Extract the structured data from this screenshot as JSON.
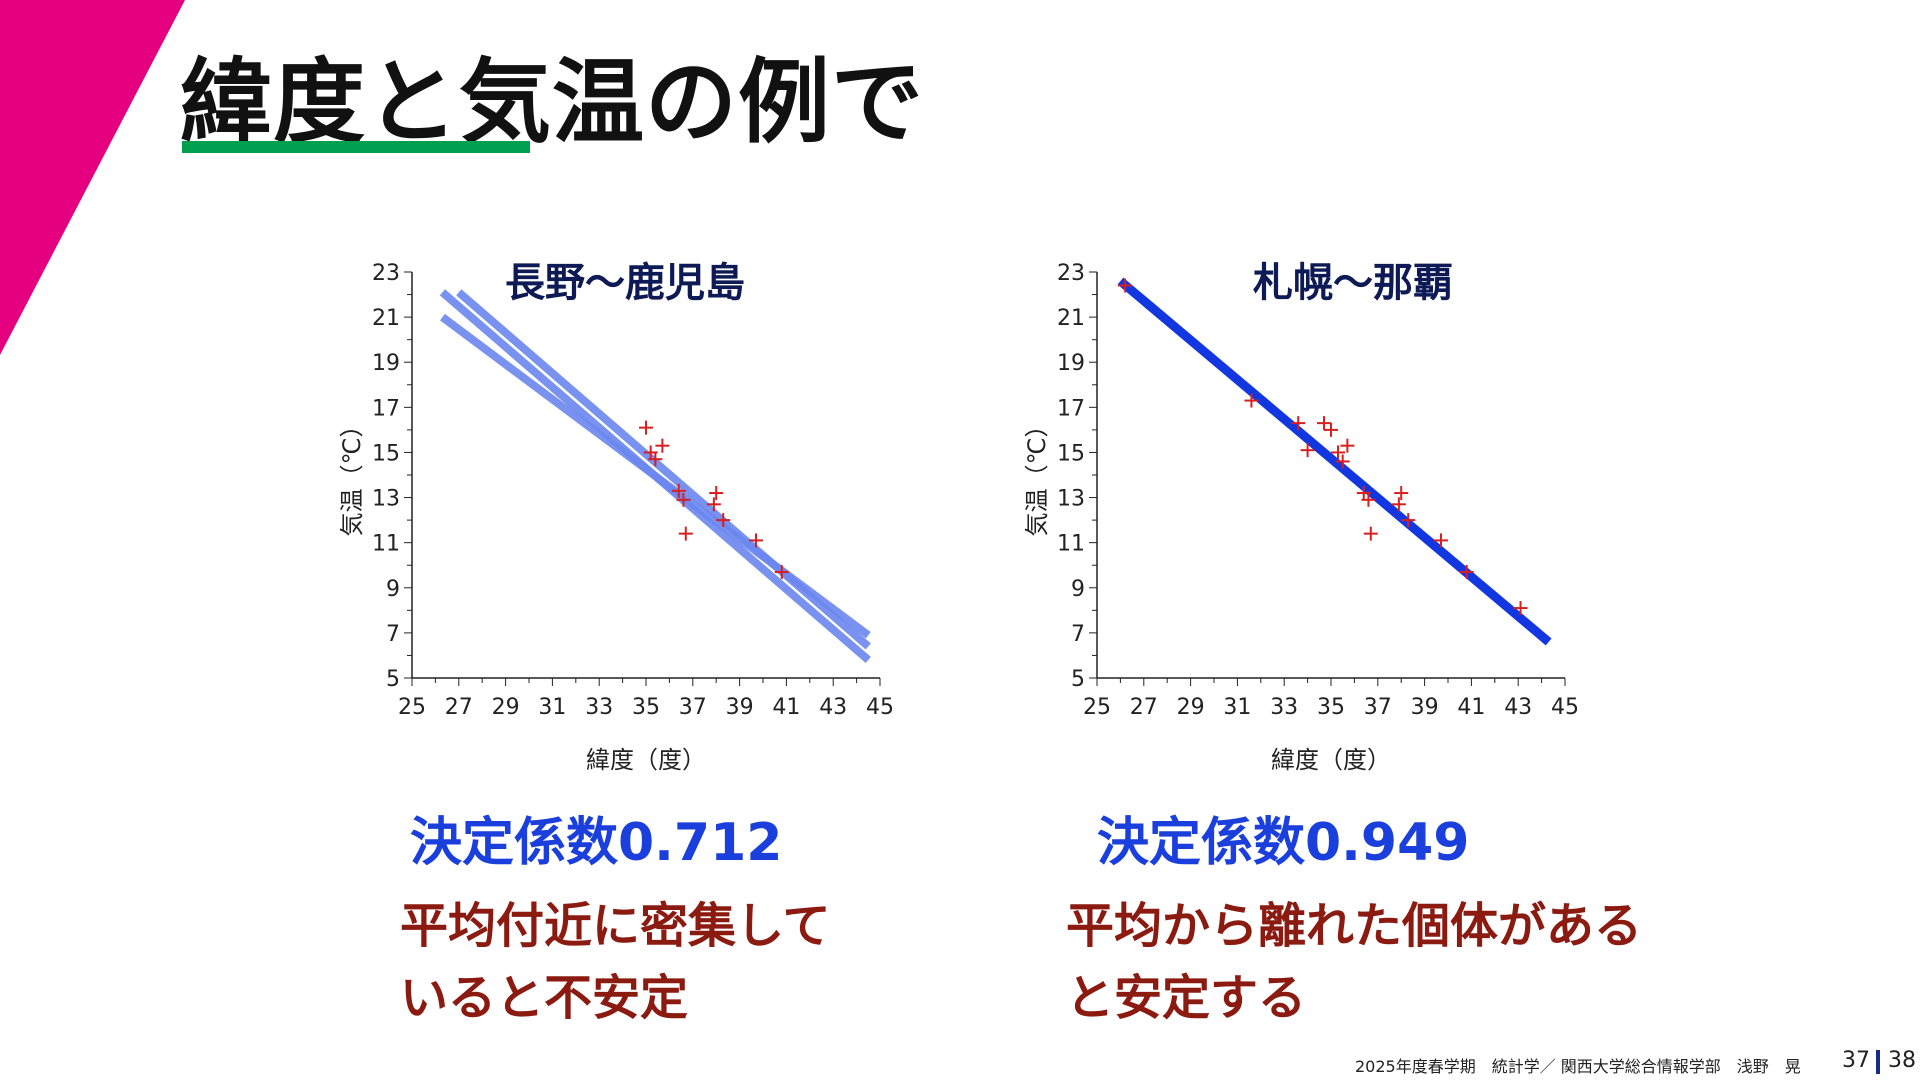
{
  "slide": {
    "title": "緯度と気温の例で",
    "footer": "2025年度春学期　統計学／ 関西大学総合情報学部　浅野　晃",
    "page_current": "37",
    "page_total": "38"
  },
  "colors": {
    "accent_triangle": "#e5007f",
    "title_underline": "#00a050",
    "chart_title": "#0d1a55",
    "stat_text": "#1a3fdc",
    "note_text": "#8b1a10",
    "point_marker": "#d81e1e",
    "left_lines": "#6a86ee",
    "right_line": "#1237e0"
  },
  "chart_data": [
    {
      "type": "scatter",
      "title": "長野～鹿児島",
      "xlabel": "緯度（度）",
      "ylabel": "気温（℃）",
      "xlim": [
        25,
        45
      ],
      "ylim": [
        5,
        23
      ],
      "xticks": [
        25,
        27,
        29,
        31,
        33,
        35,
        37,
        39,
        41,
        43,
        45
      ],
      "yticks": [
        5,
        7,
        9,
        11,
        13,
        15,
        17,
        19,
        21,
        23
      ],
      "grid": false,
      "points": [
        {
          "x": 35.0,
          "y": 16.1
        },
        {
          "x": 35.2,
          "y": 15.0
        },
        {
          "x": 35.4,
          "y": 14.7
        },
        {
          "x": 35.7,
          "y": 15.3
        },
        {
          "x": 36.4,
          "y": 13.3
        },
        {
          "x": 36.6,
          "y": 12.9
        },
        {
          "x": 36.7,
          "y": 11.4
        },
        {
          "x": 37.9,
          "y": 12.7
        },
        {
          "x": 38.0,
          "y": 13.2
        },
        {
          "x": 38.3,
          "y": 12.0
        },
        {
          "x": 39.7,
          "y": 11.1
        },
        {
          "x": 40.8,
          "y": 9.7
        }
      ],
      "lines": [
        {
          "x": [
            26.3,
            44.5
          ],
          "y": [
            22.1,
            5.8
          ]
        },
        {
          "x": [
            26.3,
            44.5
          ],
          "y": [
            21.0,
            6.9
          ]
        },
        {
          "x": [
            27.0,
            44.5
          ],
          "y": [
            22.1,
            6.4
          ]
        }
      ]
    },
    {
      "type": "scatter",
      "title": "札幌～那覇",
      "xlabel": "緯度（度）",
      "ylabel": "気温（℃）",
      "xlim": [
        25,
        45
      ],
      "ylim": [
        5,
        23
      ],
      "xticks": [
        25,
        27,
        29,
        31,
        33,
        35,
        37,
        39,
        41,
        43,
        45
      ],
      "yticks": [
        5,
        7,
        9,
        11,
        13,
        15,
        17,
        19,
        21,
        23
      ],
      "grid": false,
      "points": [
        {
          "x": 26.2,
          "y": 22.4
        },
        {
          "x": 31.6,
          "y": 17.3
        },
        {
          "x": 33.6,
          "y": 16.3
        },
        {
          "x": 34.0,
          "y": 15.1
        },
        {
          "x": 34.7,
          "y": 16.3
        },
        {
          "x": 35.0,
          "y": 16.0
        },
        {
          "x": 35.3,
          "y": 15.0
        },
        {
          "x": 35.5,
          "y": 14.6
        },
        {
          "x": 35.7,
          "y": 15.3
        },
        {
          "x": 36.4,
          "y": 13.2
        },
        {
          "x": 36.6,
          "y": 12.9
        },
        {
          "x": 36.7,
          "y": 11.4
        },
        {
          "x": 37.9,
          "y": 12.7
        },
        {
          "x": 38.0,
          "y": 13.2
        },
        {
          "x": 38.3,
          "y": 12.0
        },
        {
          "x": 39.7,
          "y": 11.1
        },
        {
          "x": 40.8,
          "y": 9.7
        },
        {
          "x": 43.1,
          "y": 8.1
        }
      ],
      "lines": [
        {
          "x": [
            26.0,
            44.3
          ],
          "y": [
            22.6,
            6.6
          ]
        }
      ]
    }
  ],
  "stats": {
    "left": "決定係数0.712",
    "right": "決定係数0.949"
  },
  "notes": {
    "left": [
      "平均付近に密集して",
      "いると不安定"
    ],
    "right": [
      "平均から離れた個体がある",
      "と安定する"
    ]
  }
}
